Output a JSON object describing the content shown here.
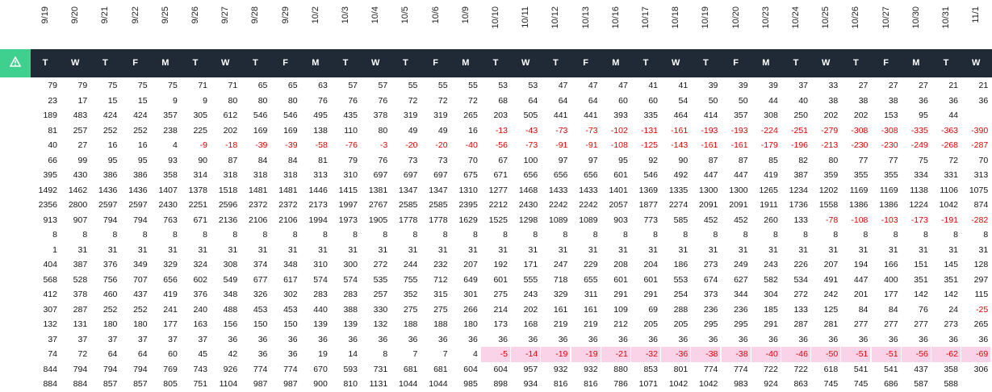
{
  "dates": [
    "9/19",
    "9/20",
    "9/21",
    "9/22",
    "9/25",
    "9/26",
    "9/27",
    "9/28",
    "9/29",
    "10/2",
    "10/3",
    "10/4",
    "10/5",
    "10/6",
    "10/9",
    "10/10",
    "10/11",
    "10/12",
    "10/13",
    "10/16",
    "10/17",
    "10/18",
    "10/19",
    "10/20",
    "10/23",
    "10/24",
    "10/25",
    "10/26",
    "10/27",
    "10/30",
    "10/31",
    "11/1"
  ],
  "days": [
    "T",
    "W",
    "T",
    "F",
    "M",
    "T",
    "W",
    "T",
    "F",
    "M",
    "T",
    "W",
    "T",
    "F",
    "M",
    "T",
    "W",
    "T",
    "F",
    "M",
    "T",
    "W",
    "T",
    "F",
    "M",
    "T",
    "W",
    "T",
    "F",
    "M",
    "T",
    "W"
  ],
  "logo_icon": "warning-triangle-icon",
  "colors": {
    "header_bg": "#1f2a36",
    "logo_bg": "#3fcf8e",
    "negative": "#e00000",
    "highlight": "#fbd3e9"
  },
  "highlighted_row": 18,
  "highlight_start_col": 15,
  "rows": [
    [
      "79",
      "79",
      "75",
      "75",
      "75",
      "71",
      "71",
      "65",
      "65",
      "63",
      "57",
      "57",
      "55",
      "55",
      "55",
      "53",
      "53",
      "47",
      "47",
      "47",
      "41",
      "41",
      "39",
      "39",
      "39",
      "37",
      "33",
      "27",
      "27",
      "27",
      "21",
      "21"
    ],
    [
      "23",
      "17",
      "15",
      "15",
      "9",
      "9",
      "80",
      "80",
      "80",
      "76",
      "76",
      "76",
      "72",
      "72",
      "72",
      "68",
      "64",
      "64",
      "64",
      "60",
      "60",
      "54",
      "50",
      "50",
      "44",
      "40",
      "38",
      "38",
      "38",
      "36",
      "36",
      "36"
    ],
    [
      "189",
      "483",
      "424",
      "424",
      "357",
      "305",
      "612",
      "546",
      "546",
      "495",
      "435",
      "378",
      "319",
      "319",
      "265",
      "203",
      "505",
      "441",
      "441",
      "393",
      "335",
      "464",
      "414",
      "357",
      "308",
      "250",
      "202",
      "202",
      "153",
      "95",
      "44",
      ""
    ],
    [
      "81",
      "257",
      "252",
      "252",
      "238",
      "225",
      "202",
      "169",
      "169",
      "138",
      "110",
      "80",
      "49",
      "49",
      "16",
      "-13",
      "-43",
      "-73",
      "-73",
      "-102",
      "-131",
      "-161",
      "-193",
      "-193",
      "-224",
      "-251",
      "-279",
      "-308",
      "-308",
      "-335",
      "-363",
      "-390"
    ],
    [
      "40",
      "27",
      "16",
      "16",
      "4",
      "-9",
      "-18",
      "-39",
      "-39",
      "-58",
      "-76",
      "-3",
      "-20",
      "-20",
      "-40",
      "-56",
      "-73",
      "-91",
      "-91",
      "-108",
      "-125",
      "-143",
      "-161",
      "-161",
      "-179",
      "-196",
      "-213",
      "-230",
      "-230",
      "-249",
      "-268",
      "-287"
    ],
    [
      "66",
      "99",
      "95",
      "95",
      "93",
      "90",
      "87",
      "84",
      "84",
      "81",
      "79",
      "76",
      "73",
      "73",
      "70",
      "67",
      "100",
      "97",
      "97",
      "95",
      "92",
      "90",
      "87",
      "87",
      "85",
      "82",
      "80",
      "77",
      "77",
      "75",
      "72",
      "70"
    ],
    [
      "395",
      "430",
      "386",
      "386",
      "358",
      "314",
      "318",
      "318",
      "318",
      "313",
      "310",
      "697",
      "697",
      "697",
      "675",
      "671",
      "656",
      "656",
      "656",
      "601",
      "546",
      "492",
      "447",
      "447",
      "419",
      "387",
      "359",
      "355",
      "355",
      "334",
      "331",
      "313"
    ],
    [
      "1492",
      "1462",
      "1436",
      "1436",
      "1407",
      "1378",
      "1518",
      "1481",
      "1481",
      "1446",
      "1415",
      "1381",
      "1347",
      "1347",
      "1310",
      "1277",
      "1468",
      "1433",
      "1433",
      "1401",
      "1369",
      "1335",
      "1300",
      "1300",
      "1265",
      "1234",
      "1202",
      "1169",
      "1169",
      "1138",
      "1106",
      "1075"
    ],
    [
      "2356",
      "2800",
      "2597",
      "2597",
      "2430",
      "2251",
      "2596",
      "2372",
      "2372",
      "2173",
      "1997",
      "2767",
      "2585",
      "2585",
      "2395",
      "2212",
      "2430",
      "2242",
      "2242",
      "2057",
      "1877",
      "2274",
      "2091",
      "2091",
      "1911",
      "1736",
      "1558",
      "1386",
      "1386",
      "1224",
      "1042",
      "874"
    ],
    [
      "913",
      "907",
      "794",
      "794",
      "763",
      "671",
      "2136",
      "2106",
      "2106",
      "1994",
      "1973",
      "1905",
      "1778",
      "1778",
      "1629",
      "1525",
      "1298",
      "1089",
      "1089",
      "903",
      "773",
      "585",
      "452",
      "452",
      "260",
      "133",
      "-78",
      "-108",
      "-103",
      "-173",
      "-191",
      "-282"
    ],
    [
      "8",
      "8",
      "8",
      "8",
      "8",
      "8",
      "8",
      "8",
      "8",
      "8",
      "8",
      "8",
      "8",
      "8",
      "8",
      "8",
      "8",
      "8",
      "8",
      "8",
      "8",
      "8",
      "8",
      "8",
      "8",
      "8",
      "8",
      "8",
      "8",
      "8",
      "8",
      "8"
    ],
    [
      "1",
      "31",
      "31",
      "31",
      "31",
      "31",
      "31",
      "31",
      "31",
      "31",
      "31",
      "31",
      "31",
      "31",
      "31",
      "31",
      "31",
      "31",
      "31",
      "31",
      "31",
      "31",
      "31",
      "31",
      "31",
      "31",
      "31",
      "31",
      "31",
      "31",
      "31",
      "31"
    ],
    [
      "404",
      "387",
      "376",
      "349",
      "329",
      "324",
      "308",
      "374",
      "348",
      "310",
      "300",
      "272",
      "244",
      "232",
      "207",
      "192",
      "171",
      "247",
      "229",
      "208",
      "204",
      "186",
      "273",
      "249",
      "243",
      "226",
      "207",
      "194",
      "166",
      "151",
      "145",
      "128"
    ],
    [
      "568",
      "528",
      "756",
      "707",
      "656",
      "602",
      "549",
      "677",
      "617",
      "574",
      "574",
      "535",
      "755",
      "712",
      "649",
      "601",
      "555",
      "718",
      "655",
      "601",
      "601",
      "553",
      "674",
      "627",
      "582",
      "534",
      "491",
      "447",
      "400",
      "351",
      "351",
      "297"
    ],
    [
      "412",
      "378",
      "460",
      "437",
      "419",
      "376",
      "348",
      "326",
      "302",
      "283",
      "283",
      "257",
      "352",
      "315",
      "301",
      "275",
      "243",
      "329",
      "311",
      "291",
      "291",
      "254",
      "373",
      "344",
      "304",
      "272",
      "242",
      "201",
      "177",
      "142",
      "142",
      "115"
    ],
    [
      "307",
      "287",
      "252",
      "252",
      "241",
      "240",
      "488",
      "453",
      "453",
      "440",
      "388",
      "330",
      "275",
      "275",
      "266",
      "214",
      "202",
      "161",
      "161",
      "109",
      "69",
      "288",
      "236",
      "236",
      "185",
      "133",
      "125",
      "84",
      "84",
      "76",
      "24",
      "-25"
    ],
    [
      "132",
      "131",
      "180",
      "180",
      "177",
      "163",
      "156",
      "150",
      "150",
      "139",
      "139",
      "132",
      "188",
      "188",
      "180",
      "173",
      "168",
      "219",
      "219",
      "212",
      "205",
      "205",
      "295",
      "295",
      "291",
      "287",
      "281",
      "277",
      "277",
      "277",
      "273",
      "265"
    ],
    [
      "37",
      "37",
      "37",
      "37",
      "37",
      "37",
      "36",
      "36",
      "36",
      "36",
      "36",
      "36",
      "36",
      "36",
      "36",
      "36",
      "36",
      "36",
      "36",
      "36",
      "36",
      "36",
      "36",
      "36",
      "36",
      "36",
      "36",
      "36",
      "36",
      "36",
      "36",
      "36"
    ],
    [
      "74",
      "72",
      "64",
      "64",
      "60",
      "45",
      "42",
      "36",
      "36",
      "19",
      "14",
      "8",
      "7",
      "7",
      "4",
      "-5",
      "-14",
      "-19",
      "-19",
      "-21",
      "-32",
      "-36",
      "-38",
      "-38",
      "-40",
      "-46",
      "-50",
      "-51",
      "-51",
      "-56",
      "-62",
      "-69"
    ],
    [
      "844",
      "794",
      "794",
      "794",
      "769",
      "743",
      "926",
      "774",
      "774",
      "670",
      "593",
      "731",
      "681",
      "681",
      "604",
      "604",
      "957",
      "932",
      "932",
      "880",
      "853",
      "801",
      "774",
      "774",
      "722",
      "722",
      "618",
      "541",
      "541",
      "437",
      "358",
      "306"
    ],
    [
      "884",
      "884",
      "857",
      "857",
      "805",
      "751",
      "1104",
      "987",
      "987",
      "900",
      "810",
      "1131",
      "1044",
      "1044",
      "985",
      "898",
      "934",
      "816",
      "816",
      "786",
      "1071",
      "1042",
      "1042",
      "983",
      "924",
      "863",
      "745",
      "745",
      "686",
      "587",
      "588",
      ""
    ]
  ]
}
